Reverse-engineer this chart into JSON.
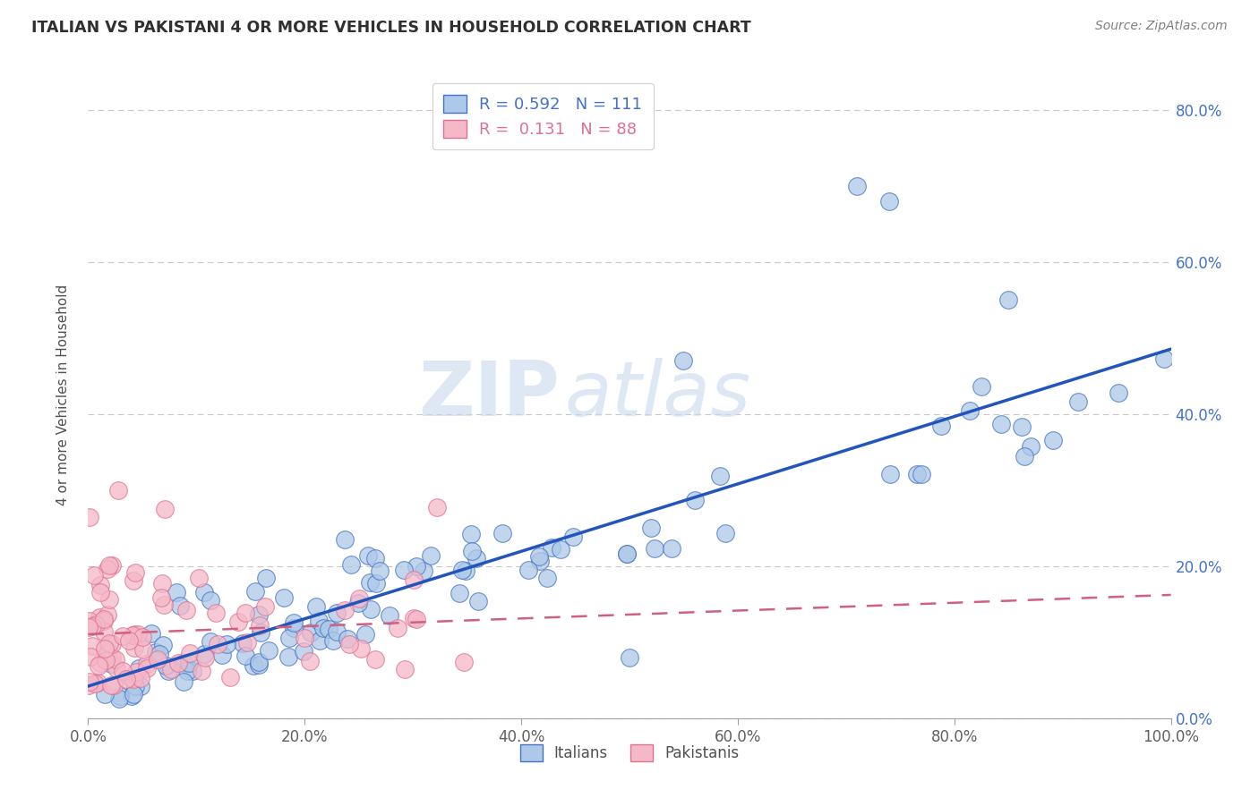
{
  "title": "ITALIAN VS PAKISTANI 4 OR MORE VEHICLES IN HOUSEHOLD CORRELATION CHART",
  "source_text": "Source: ZipAtlas.com",
  "ylabel": "4 or more Vehicles in Household",
  "watermark_zip": "ZIP",
  "watermark_atlas": "atlas",
  "xlim": [
    0.0,
    1.0
  ],
  "ylim": [
    0.0,
    0.85
  ],
  "xtick_labels": [
    "0.0%",
    "20.0%",
    "40.0%",
    "60.0%",
    "80.0%",
    "100.0%"
  ],
  "xtick_vals": [
    0.0,
    0.2,
    0.4,
    0.6,
    0.8,
    1.0
  ],
  "ytick_labels": [
    "0.0%",
    "20.0%",
    "40.0%",
    "60.0%",
    "80.0%"
  ],
  "ytick_vals": [
    0.0,
    0.2,
    0.4,
    0.6,
    0.8
  ],
  "italian_fill_color": "#adc8e8",
  "italian_edge_color": "#4472C4",
  "pakistani_fill_color": "#f4b8c8",
  "pakistani_edge_color": "#e07090",
  "italian_line_color": "#2255bb",
  "pakistani_line_color": "#d06080",
  "italian_R": 0.592,
  "italian_N": 111,
  "pakistani_R": 0.131,
  "pakistani_N": 88,
  "legend_italian_label": "Italians",
  "legend_pakistani_label": "Pakistanis",
  "title_color": "#303030",
  "source_color": "#808080",
  "tick_color": "#606060",
  "grid_color": "#c8c8c8",
  "right_tick_color": "#4472C4"
}
